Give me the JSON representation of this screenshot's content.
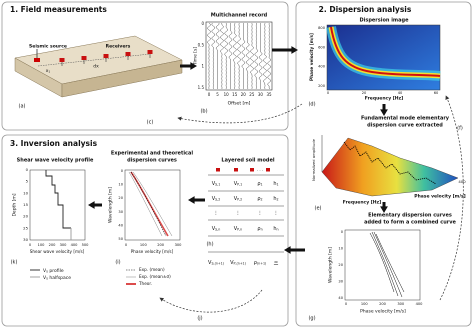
{
  "panel1": {
    "title": "1. Field measurements",
    "source": "Seismic source",
    "receivers": "Receivers",
    "x1": {
      "main": "x",
      "sub": "1"
    },
    "dx": "dx",
    "label": "(a)",
    "record": {
      "title": "Multichannel record",
      "ylabel": "Time [s]",
      "xlabel": "Offset [m]",
      "yticks": [
        "0",
        "0.5",
        "1",
        "1.5"
      ],
      "xticks": [
        "0",
        "5",
        "10",
        "15",
        "20",
        "25",
        "30",
        "35"
      ],
      "label": "(b)"
    }
  },
  "loop_c": "(c)",
  "panel2": {
    "title": "2. Dispersion analysis",
    "image": {
      "title": "Dispersion image",
      "ylabel": "Phase velocity [m/s]",
      "xlabel": "Frequency [Hz]",
      "yticks": [
        "800",
        "600",
        "400",
        "200"
      ],
      "xticks": [
        "0",
        "20",
        "40",
        "60"
      ],
      "label": "(d)"
    },
    "step_extract": [
      "Fundamental mode elementary",
      "dispersion curve extracted"
    ],
    "surface": {
      "zlabel": "Normalized amplitude",
      "xlabel": "Frequency [Hz]",
      "ylabel": "Phase velocity [m/s]",
      "tick": "400",
      "label": "(e)"
    },
    "loop_f": "(f)",
    "step_combine": [
      "Elementary dispersion curves",
      "added to form a combined curve"
    ],
    "combined": {
      "ylabel": "Wavelength [m]",
      "xlabel": "Phase velocity [m/s]",
      "yticks": [
        "0",
        "10",
        "20",
        "30",
        "40"
      ],
      "xticks": [
        "0",
        "100",
        "200",
        "300",
        "400"
      ],
      "label": "(g)"
    }
  },
  "panel3": {
    "title": "3. Inversion analysis",
    "profile": {
      "title": "Shear wave velocity profile",
      "ylabel": "Depth [m]",
      "xlabel": "Shear wave velocity [m/s]",
      "yticks": [
        "0",
        "5",
        "10",
        "15",
        "20",
        "25",
        "30"
      ],
      "xticks": [
        "0",
        "100",
        "200",
        "300",
        "400",
        "500"
      ],
      "legend": [
        {
          "main": "V",
          "sub": "S",
          "text": " profile"
        },
        {
          "main": "V",
          "sub": "S",
          "text": " halfspace"
        }
      ],
      "label": "(k)"
    },
    "curves": {
      "title": [
        "Experimental and theoretical",
        "dispersion curves"
      ],
      "ylabel": "Wavelength [m]",
      "xlabel": "Phase velocity [m/s]",
      "yticks": [
        "0",
        "10",
        "20",
        "30",
        "40",
        "50"
      ],
      "xticks": [
        "0",
        "100",
        "200",
        "300"
      ],
      "legend": [
        "Exp. (mean)",
        "Exp. (mean±σ)",
        "Theor."
      ],
      "label": "(i)"
    },
    "model": {
      "title": "Layered soil model",
      "ellipsis": ". . .",
      "dots": "⋮",
      "rows": [
        [
          {
            "main": "V",
            "sub": "S,1"
          },
          {
            "main": "V",
            "sub": "P,1"
          },
          {
            "main": "ρ",
            "sub": "1"
          },
          {
            "main": "h",
            "sub": "1"
          }
        ],
        [
          {
            "main": "V",
            "sub": "S,2"
          },
          {
            "main": "V",
            "sub": "P,2"
          },
          {
            "main": "ρ",
            "sub": "2"
          },
          {
            "main": "h",
            "sub": "2"
          }
        ],
        [
          {
            "main": "V",
            "sub": "S,n"
          },
          {
            "main": "V",
            "sub": "P,n"
          },
          {
            "main": "ρ",
            "sub": "n"
          },
          {
            "main": "h",
            "sub": "n"
          }
        ],
        [
          {
            "main": "V",
            "sub": "S,(n+1)"
          },
          {
            "main": "V",
            "sub": "P,(n+1)"
          },
          {
            "main": "ρ",
            "sub": "(n+1)"
          },
          "∞"
        ]
      ],
      "label": "(h)"
    },
    "loop_j": "(j)"
  }
}
